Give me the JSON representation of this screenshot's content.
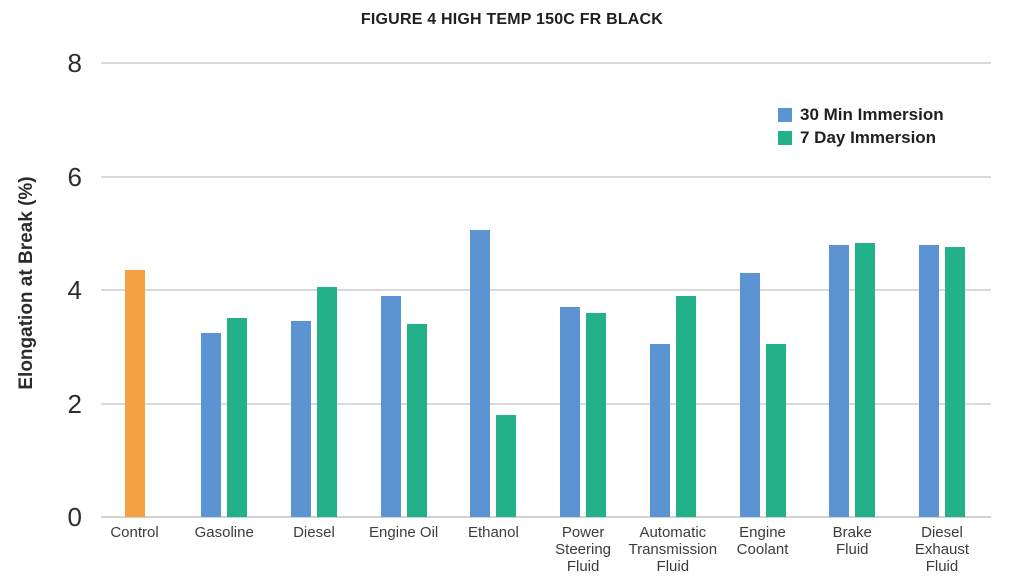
{
  "figure": {
    "title": "FIGURE 4 HIGH TEMP 150C FR BLACK",
    "y_axis_title": "Elongation at Break (%)"
  },
  "legend": {
    "items": [
      {
        "label": "30 Min Immersion",
        "color": "#5B93D3"
      },
      {
        "label": "7 Day Immersion",
        "color": "#23B189"
      }
    ]
  },
  "colors": {
    "control_bar": "#F5A142",
    "immersion_30min_bar": "#5B93D3",
    "immersion_7day_bar": "#23B189",
    "gridline": "#DADADA",
    "text_dark": "#2b2b2b"
  },
  "chart_data": {
    "type": "bar",
    "title": "FIGURE 4 HIGH TEMP 150C FR BLACK",
    "xlabel": "",
    "ylabel": "Elongation at Break (%)",
    "ylim": [
      0,
      8
    ],
    "ytick_step": 2,
    "grid": true,
    "legend_position": "top-right",
    "categories": [
      "Control",
      "Gasoline",
      "Diesel",
      "Engine Oil",
      "Ethanol",
      "Power\nSteering\nFluid",
      "Automatic\nTransmission\nFluid",
      "Engine\nCoolant",
      "Brake\nFluid",
      "Diesel\nExhaust\nFluid"
    ],
    "series": [
      {
        "name": "Control",
        "color": "#F5A142",
        "show_in_legend": false,
        "values": [
          4.35,
          null,
          null,
          null,
          null,
          null,
          null,
          null,
          null,
          null
        ]
      },
      {
        "name": "30 Min Immersion",
        "color": "#5B93D3",
        "show_in_legend": true,
        "values": [
          null,
          3.25,
          3.45,
          3.9,
          5.05,
          3.7,
          3.05,
          4.3,
          4.8,
          4.8
        ]
      },
      {
        "name": "7 Day Immersion",
        "color": "#23B189",
        "show_in_legend": true,
        "values": [
          null,
          3.5,
          4.05,
          3.4,
          1.8,
          3.6,
          3.9,
          3.05,
          4.82,
          4.75
        ]
      }
    ]
  }
}
